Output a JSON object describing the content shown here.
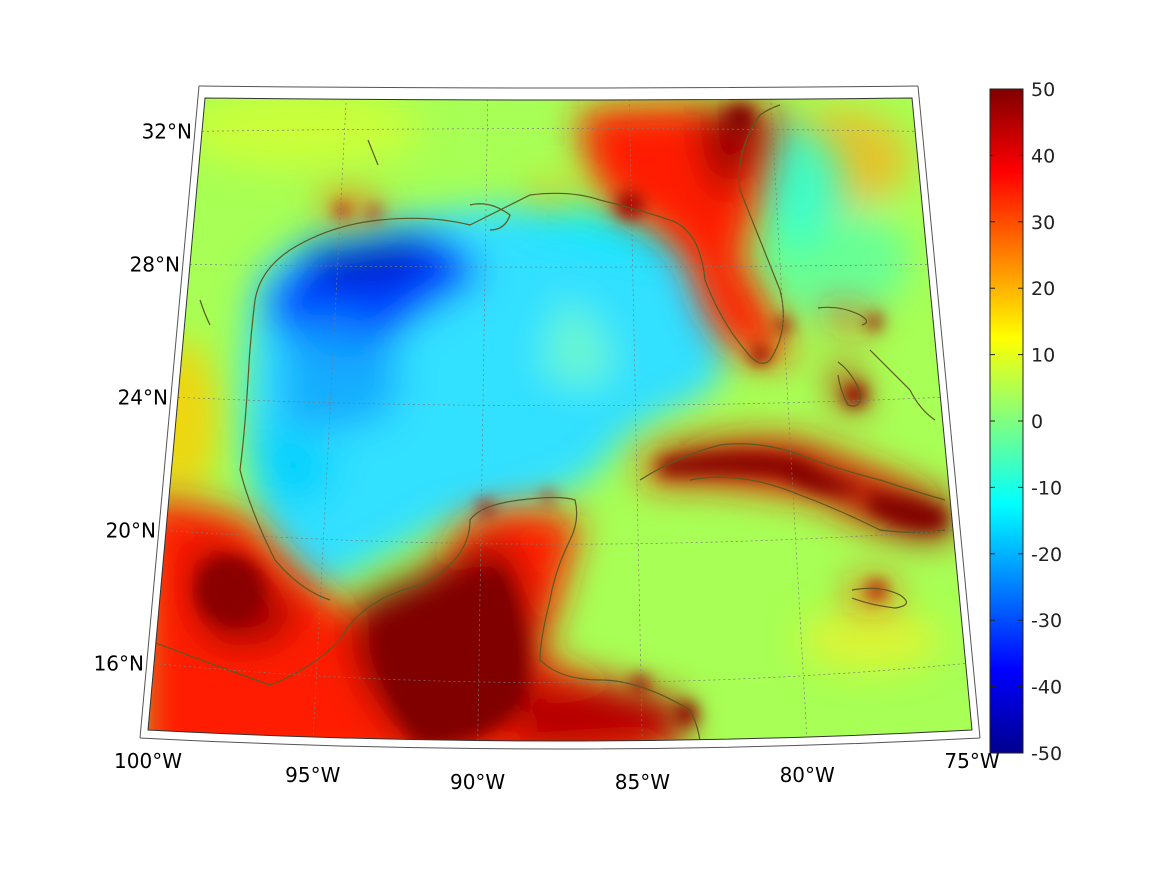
{
  "map": {
    "lon_range": [
      -100,
      -75
    ],
    "lat_range": [
      14,
      33
    ],
    "lon_ticks": [
      {
        "value": -100,
        "label": "100°W"
      },
      {
        "value": -95,
        "label": "95°W"
      },
      {
        "value": -90,
        "label": "90°W"
      },
      {
        "value": -85,
        "label": "85°W"
      },
      {
        "value": -80,
        "label": "80°W"
      },
      {
        "value": -75,
        "label": "75°W"
      }
    ],
    "lat_ticks": [
      {
        "value": 16,
        "label": "16°N"
      },
      {
        "value": 20,
        "label": "20°N"
      },
      {
        "value": 24,
        "label": "24°N"
      },
      {
        "value": 28,
        "label": "28°N"
      },
      {
        "value": 32,
        "label": "32°N"
      }
    ],
    "field_background_color": "#a8ff55",
    "coastline_color": "#5a5a22",
    "gridline_color": "#7a7a7a"
  },
  "colorbar": {
    "min": -50,
    "max": 50,
    "ticks": [
      {
        "value": 50,
        "label": "50"
      },
      {
        "value": 40,
        "label": "40"
      },
      {
        "value": 30,
        "label": "30"
      },
      {
        "value": 20,
        "label": "20"
      },
      {
        "value": 10,
        "label": "10"
      },
      {
        "value": 0,
        "label": "0"
      },
      {
        "value": -10,
        "label": "-10"
      },
      {
        "value": -20,
        "label": "-20"
      },
      {
        "value": -30,
        "label": "-30"
      },
      {
        "value": -40,
        "label": "-40"
      },
      {
        "value": -50,
        "label": "-50"
      }
    ],
    "colors": [
      "#800000",
      "#ff0000",
      "#ff8000",
      "#ffff00",
      "#80ff80",
      "#00ffff",
      "#0080ff",
      "#0000ff",
      "#00008f"
    ]
  }
}
